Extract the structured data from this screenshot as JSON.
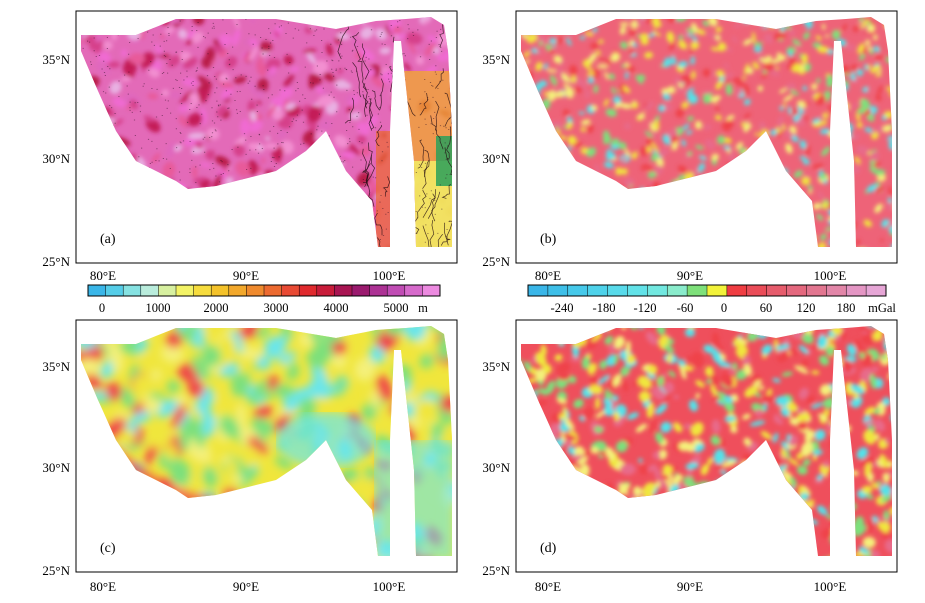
{
  "panels": [
    {
      "id": "a",
      "label": "(a)",
      "kind": "elevation"
    },
    {
      "id": "b",
      "label": "(b)",
      "kind": "gravity"
    },
    {
      "id": "c",
      "label": "(c)",
      "kind": "gravity-smooth"
    },
    {
      "id": "d",
      "label": "(d)",
      "kind": "gravity"
    }
  ],
  "axes": {
    "lat_ticks": [
      "35°N",
      "30°N",
      "25°N"
    ],
    "lon_ticks": [
      "80°E",
      "90°E",
      "100°E"
    ]
  },
  "colorbar_elevation": {
    "unit": "m",
    "labels": [
      "0",
      "1000",
      "2000",
      "3000",
      "4000",
      "5000"
    ],
    "colors": [
      "#3ab6e8",
      "#55cde8",
      "#86e2e2",
      "#b9ecdc",
      "#d7f0a0",
      "#f3f366",
      "#f6dc3e",
      "#f4c22a",
      "#f2a82c",
      "#ef8a2e",
      "#ec6a30",
      "#e84a34",
      "#e02a2e",
      "#c81c3a",
      "#a81552",
      "#9a1a6e",
      "#ac3294",
      "#c04cb4",
      "#d66acb",
      "#ec8ae0"
    ]
  },
  "colorbar_gravity": {
    "unit": "mGal",
    "labels": [
      "-240",
      "-180",
      "-120",
      "-60",
      "0",
      "60",
      "120",
      "180"
    ],
    "colors": [
      "#3ab6e8",
      "#3ebfe8",
      "#46c9ea",
      "#4ed2ea",
      "#58daea",
      "#62e2e8",
      "#72e8e0",
      "#8aeccc",
      "#7ee07a",
      "#f2f23a",
      "#ef3d42",
      "#ea4c58",
      "#e65c6c",
      "#e4687e",
      "#e27690",
      "#e286a8",
      "#e496c4",
      "#e6a6d6"
    ]
  },
  "palettes": {
    "elevation_map": [
      "#e85a9a",
      "#d63f8a",
      "#e068be",
      "#c41d58",
      "#f06ad2",
      "#e8b0e2",
      "#b91c4a",
      "#f28fd0"
    ],
    "gravity_map": [
      "#ef4348",
      "#f0e63c",
      "#7de07c",
      "#52e2ea",
      "#e86a8a",
      "#f4f07a"
    ],
    "smooth_map": [
      "#ef4348",
      "#f0e63c",
      "#7de07c",
      "#6ae6ea",
      "#f4f07a"
    ]
  }
}
